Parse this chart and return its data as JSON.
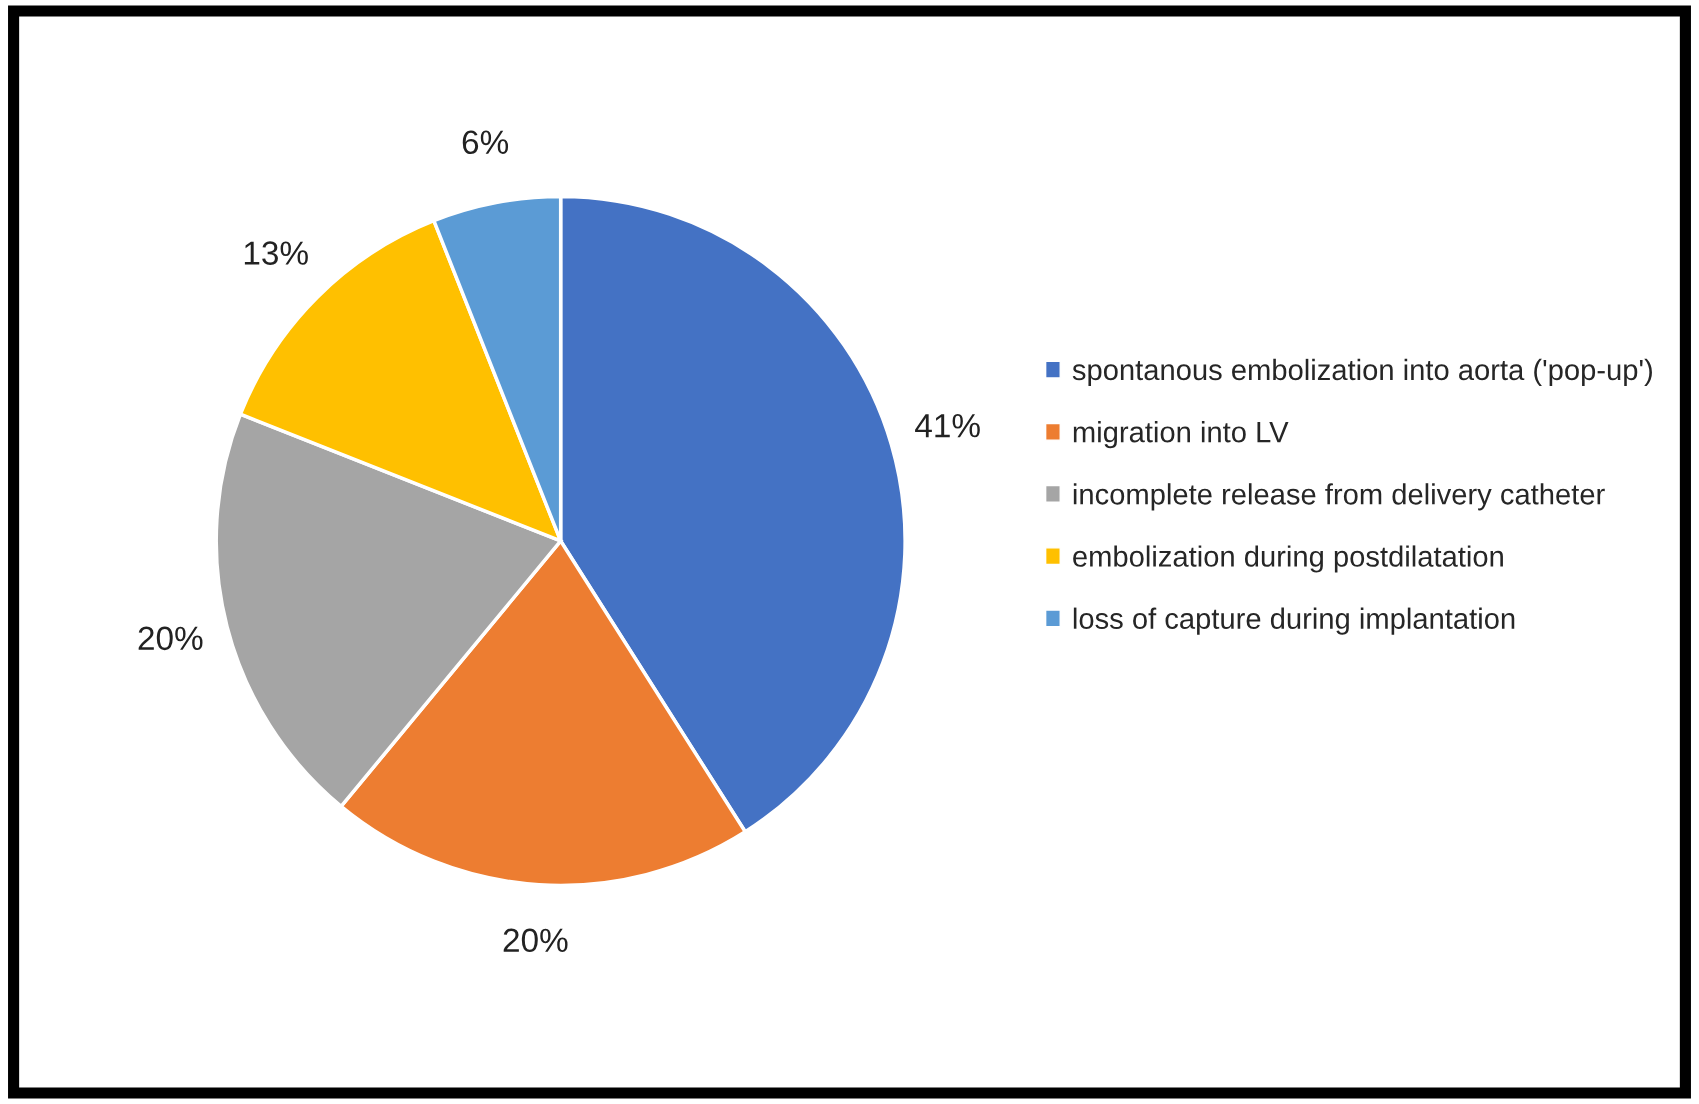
{
  "chart_data": {
    "type": "pie",
    "categories": [
      "spontanous embolization into aorta ('pop-up')",
      "migration into LV",
      "incomplete release from delivery catheter",
      "embolization during postdilatation",
      "loss of capture during implantation"
    ],
    "values": [
      41,
      20,
      20,
      13,
      6
    ],
    "colors": [
      "#4472c4",
      "#ed7d31",
      "#a5a5a5",
      "#ffc000",
      "#5b9bd5"
    ],
    "value_labels": [
      "41%",
      "20%",
      "20%",
      "13%",
      "6%"
    ],
    "legend": "right"
  }
}
